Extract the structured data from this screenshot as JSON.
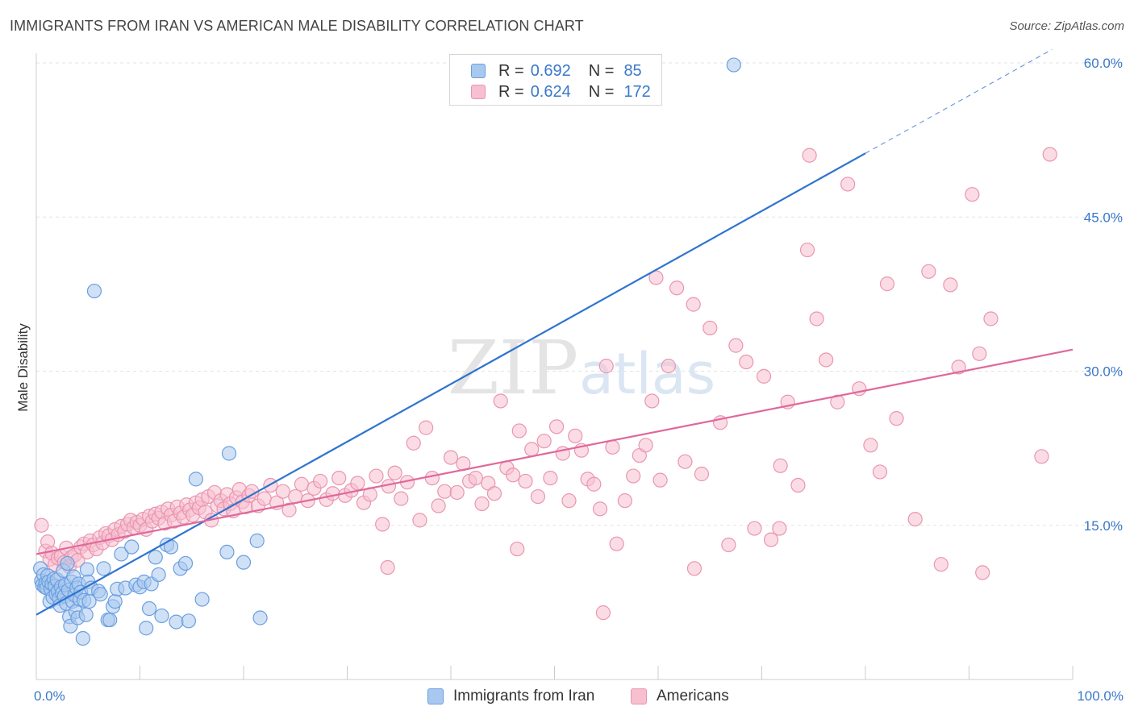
{
  "header": {
    "title": "IMMIGRANTS FROM IRAN VS AMERICAN MALE DISABILITY CORRELATION CHART",
    "source": "Source: ZipAtlas.com"
  },
  "legend": {
    "rows": [
      {
        "r_label": "R =",
        "r_value": "0.692",
        "n_label": "N =",
        "n_value": "85"
      },
      {
        "r_label": "R =",
        "r_value": "0.624",
        "n_label": "N =",
        "n_value": "172"
      }
    ]
  },
  "colors": {
    "blue_fill": "#a9c8ef",
    "blue_stroke": "#6a9fe0",
    "blue_line": "#2f74d0",
    "pink_fill": "#f7bfd0",
    "pink_stroke": "#e896b1",
    "pink_line": "#e0689a",
    "axis_label": "#3a78c9",
    "grid": "#e3e3e3"
  },
  "watermark": {
    "zip": "ZIP",
    "atlas": "atlas"
  },
  "chart_data": {
    "type": "scatter",
    "title": "IMMIGRANTS FROM IRAN VS AMERICAN MALE DISABILITY CORRELATION CHART",
    "xlabel": "",
    "ylabel": "Male Disability",
    "xlim": [
      0,
      100
    ],
    "ylim": [
      0,
      60
    ],
    "x_tick_labels": [
      "0.0%",
      "100.0%"
    ],
    "y_ticks": [
      15,
      30,
      45,
      60
    ],
    "y_tick_labels": [
      "15.0%",
      "30.0%",
      "45.0%",
      "60.0%"
    ],
    "grid": true,
    "legend_position": "top-center",
    "series": [
      {
        "name": "Immigrants from Iran",
        "color": "blue",
        "R": 0.692,
        "N": 85,
        "trend": {
          "x0": 0,
          "y0": 6.3,
          "x1": 80,
          "y1": 51.2,
          "dashed_to_x": 98
        },
        "points": [
          [
            0.4,
            10.8
          ],
          [
            0.5,
            9.6
          ],
          [
            0.6,
            9.2
          ],
          [
            0.7,
            10.2
          ],
          [
            0.8,
            9.0
          ],
          [
            0.9,
            9.4
          ],
          [
            1.0,
            8.9
          ],
          [
            1.1,
            10.1
          ],
          [
            1.2,
            9.5
          ],
          [
            1.3,
            7.6
          ],
          [
            1.4,
            8.8
          ],
          [
            1.5,
            9.3
          ],
          [
            1.6,
            8.0
          ],
          [
            1.7,
            9.8
          ],
          [
            1.8,
            9.1
          ],
          [
            1.9,
            8.3
          ],
          [
            2.0,
            9.7
          ],
          [
            2.1,
            8.6
          ],
          [
            2.2,
            7.9
          ],
          [
            2.3,
            7.2
          ],
          [
            2.4,
            9.0
          ],
          [
            2.5,
            8.4
          ],
          [
            2.6,
            10.6
          ],
          [
            2.7,
            8.1
          ],
          [
            2.8,
            9.2
          ],
          [
            2.9,
            7.4
          ],
          [
            3.0,
            11.3
          ],
          [
            3.1,
            8.7
          ],
          [
            3.2,
            6.1
          ],
          [
            3.3,
            5.2
          ],
          [
            3.4,
            9.5
          ],
          [
            3.5,
            7.6
          ],
          [
            3.6,
            10.0
          ],
          [
            3.7,
            8.2
          ],
          [
            3.8,
            6.6
          ],
          [
            3.9,
            8.9
          ],
          [
            4.0,
            6.0
          ],
          [
            4.1,
            9.3
          ],
          [
            4.2,
            7.8
          ],
          [
            4.3,
            8.5
          ],
          [
            4.5,
            4.0
          ],
          [
            4.6,
            7.7
          ],
          [
            4.8,
            6.3
          ],
          [
            4.9,
            10.7
          ],
          [
            5.0,
            9.5
          ],
          [
            5.1,
            7.6
          ],
          [
            5.3,
            8.9
          ],
          [
            5.6,
            37.8
          ],
          [
            6.0,
            8.6
          ],
          [
            6.2,
            8.3
          ],
          [
            6.5,
            10.8
          ],
          [
            6.9,
            5.8
          ],
          [
            7.1,
            5.8
          ],
          [
            7.4,
            7.1
          ],
          [
            7.6,
            7.6
          ],
          [
            7.8,
            8.8
          ],
          [
            8.2,
            12.2
          ],
          [
            8.6,
            8.9
          ],
          [
            9.2,
            12.9
          ],
          [
            9.6,
            9.2
          ],
          [
            10.0,
            9.0
          ],
          [
            10.4,
            9.5
          ],
          [
            10.6,
            5.0
          ],
          [
            10.9,
            6.9
          ],
          [
            11.1,
            9.3
          ],
          [
            11.5,
            11.9
          ],
          [
            11.8,
            10.2
          ],
          [
            12.1,
            6.2
          ],
          [
            12.6,
            13.1
          ],
          [
            13.0,
            12.9
          ],
          [
            13.5,
            5.6
          ],
          [
            13.9,
            10.8
          ],
          [
            14.4,
            11.3
          ],
          [
            14.7,
            5.7
          ],
          [
            15.4,
            19.5
          ],
          [
            16.0,
            7.8
          ],
          [
            18.4,
            12.4
          ],
          [
            18.6,
            22.0
          ],
          [
            20.0,
            11.4
          ],
          [
            21.3,
            13.5
          ],
          [
            21.6,
            6.0
          ],
          [
            67.3,
            59.8
          ]
        ]
      },
      {
        "name": "Americans",
        "color": "pink",
        "R": 0.624,
        "N": 172,
        "trend": {
          "x0": 0,
          "y0": 12.2,
          "x1": 100,
          "y1": 32.1
        },
        "points": [
          [
            0.5,
            15.0
          ],
          [
            0.9,
            12.5
          ],
          [
            1.1,
            13.4
          ],
          [
            1.3,
            11.7
          ],
          [
            1.5,
            12.3
          ],
          [
            1.8,
            11.2
          ],
          [
            2.1,
            11.8
          ],
          [
            2.4,
            12.0
          ],
          [
            2.7,
            11.4
          ],
          [
            2.9,
            12.8
          ],
          [
            3.2,
            11.0
          ],
          [
            3.4,
            11.9
          ],
          [
            3.7,
            12.1
          ],
          [
            4.0,
            11.6
          ],
          [
            4.3,
            12.9
          ],
          [
            4.6,
            13.2
          ],
          [
            4.9,
            12.4
          ],
          [
            5.2,
            13.5
          ],
          [
            5.5,
            13.1
          ],
          [
            5.8,
            12.7
          ],
          [
            6.1,
            13.8
          ],
          [
            6.4,
            13.3
          ],
          [
            6.7,
            14.2
          ],
          [
            7.0,
            14.0
          ],
          [
            7.3,
            13.6
          ],
          [
            7.6,
            14.6
          ],
          [
            7.9,
            14.1
          ],
          [
            8.2,
            14.9
          ],
          [
            8.5,
            14.4
          ],
          [
            8.8,
            15.1
          ],
          [
            9.1,
            15.5
          ],
          [
            9.4,
            14.8
          ],
          [
            9.7,
            15.3
          ],
          [
            10.0,
            15.0
          ],
          [
            10.3,
            15.6
          ],
          [
            10.6,
            14.6
          ],
          [
            10.9,
            15.9
          ],
          [
            11.2,
            15.4
          ],
          [
            11.5,
            16.1
          ],
          [
            11.8,
            15.7
          ],
          [
            12.1,
            16.3
          ],
          [
            12.4,
            15.2
          ],
          [
            12.7,
            16.6
          ],
          [
            13.0,
            16.0
          ],
          [
            13.3,
            15.4
          ],
          [
            13.6,
            16.8
          ],
          [
            13.9,
            16.2
          ],
          [
            14.2,
            15.8
          ],
          [
            14.5,
            17.0
          ],
          [
            14.8,
            16.5
          ],
          [
            15.1,
            16.0
          ],
          [
            15.4,
            17.2
          ],
          [
            15.7,
            16.7
          ],
          [
            16.0,
            17.5
          ],
          [
            16.3,
            16.3
          ],
          [
            16.6,
            17.8
          ],
          [
            16.9,
            15.5
          ],
          [
            17.2,
            18.2
          ],
          [
            17.5,
            16.9
          ],
          [
            17.8,
            17.4
          ],
          [
            18.1,
            16.6
          ],
          [
            18.4,
            18.0
          ],
          [
            18.7,
            17.1
          ],
          [
            19.0,
            16.4
          ],
          [
            19.3,
            17.7
          ],
          [
            19.6,
            18.5
          ],
          [
            19.9,
            17.3
          ],
          [
            20.2,
            16.8
          ],
          [
            20.5,
            17.9
          ],
          [
            20.8,
            18.3
          ],
          [
            21.4,
            16.9
          ],
          [
            22.0,
            17.6
          ],
          [
            22.6,
            18.9
          ],
          [
            23.2,
            17.2
          ],
          [
            23.8,
            18.3
          ],
          [
            24.4,
            16.5
          ],
          [
            25.0,
            17.8
          ],
          [
            25.6,
            19.0
          ],
          [
            26.2,
            17.4
          ],
          [
            26.8,
            18.6
          ],
          [
            27.4,
            19.3
          ],
          [
            28.0,
            17.5
          ],
          [
            28.6,
            18.1
          ],
          [
            29.2,
            19.6
          ],
          [
            29.8,
            17.9
          ],
          [
            30.4,
            18.4
          ],
          [
            31.0,
            19.1
          ],
          [
            31.6,
            17.2
          ],
          [
            32.2,
            18.0
          ],
          [
            32.8,
            19.8
          ],
          [
            33.4,
            15.1
          ],
          [
            34.0,
            18.8
          ],
          [
            34.6,
            20.1
          ],
          [
            35.2,
            17.6
          ],
          [
            35.8,
            19.2
          ],
          [
            36.4,
            23.0
          ],
          [
            37.0,
            15.5
          ],
          [
            37.6,
            24.5
          ],
          [
            38.2,
            19.6
          ],
          [
            38.8,
            16.9
          ],
          [
            39.4,
            18.3
          ],
          [
            40.0,
            21.6
          ],
          [
            40.6,
            18.2
          ],
          [
            41.2,
            21.0
          ],
          [
            41.8,
            19.3
          ],
          [
            42.4,
            19.6
          ],
          [
            43.0,
            17.1
          ],
          [
            43.6,
            19.1
          ],
          [
            44.2,
            18.1
          ],
          [
            44.8,
            27.1
          ],
          [
            45.4,
            20.6
          ],
          [
            46.0,
            19.9
          ],
          [
            46.6,
            24.2
          ],
          [
            47.2,
            19.3
          ],
          [
            47.8,
            22.4
          ],
          [
            48.4,
            17.8
          ],
          [
            49.0,
            23.2
          ],
          [
            49.6,
            19.6
          ],
          [
            50.2,
            24.6
          ],
          [
            50.8,
            22.0
          ],
          [
            51.4,
            17.4
          ],
          [
            52.0,
            23.7
          ],
          [
            52.6,
            22.3
          ],
          [
            53.2,
            19.5
          ],
          [
            53.8,
            19.0
          ],
          [
            54.4,
            16.6
          ],
          [
            54.7,
            6.5
          ],
          [
            55.0,
            30.5
          ],
          [
            55.6,
            22.6
          ],
          [
            56.0,
            13.2
          ],
          [
            56.8,
            17.4
          ],
          [
            57.6,
            19.8
          ],
          [
            58.2,
            21.8
          ],
          [
            58.8,
            22.8
          ],
          [
            59.4,
            27.1
          ],
          [
            60.2,
            19.4
          ],
          [
            61.0,
            30.5
          ],
          [
            61.8,
            38.1
          ],
          [
            62.6,
            21.2
          ],
          [
            63.4,
            36.5
          ],
          [
            64.2,
            20.0
          ],
          [
            65.0,
            34.2
          ],
          [
            66.0,
            25.0
          ],
          [
            66.8,
            13.1
          ],
          [
            67.5,
            32.5
          ],
          [
            68.5,
            30.9
          ],
          [
            69.3,
            14.7
          ],
          [
            70.2,
            29.5
          ],
          [
            70.9,
            13.6
          ],
          [
            71.8,
            20.8
          ],
          [
            72.5,
            27.0
          ],
          [
            73.5,
            18.9
          ],
          [
            74.4,
            41.8
          ],
          [
            75.3,
            35.1
          ],
          [
            76.2,
            31.1
          ],
          [
            77.3,
            27.0
          ],
          [
            78.3,
            48.2
          ],
          [
            79.4,
            28.3
          ],
          [
            80.5,
            22.8
          ],
          [
            81.4,
            20.2
          ],
          [
            82.1,
            38.5
          ],
          [
            83.0,
            25.4
          ],
          [
            84.8,
            15.6
          ],
          [
            86.1,
            39.7
          ],
          [
            87.3,
            11.2
          ],
          [
            88.2,
            38.4
          ],
          [
            89.0,
            30.4
          ],
          [
            90.3,
            47.2
          ],
          [
            91.3,
            10.4
          ],
          [
            91.0,
            31.7
          ],
          [
            92.1,
            35.1
          ],
          [
            97.0,
            21.7
          ],
          [
            97.8,
            51.1
          ],
          [
            74.6,
            51.0
          ],
          [
            59.8,
            39.1
          ],
          [
            33.9,
            10.9
          ],
          [
            63.5,
            10.8
          ],
          [
            71.7,
            14.7
          ],
          [
            46.4,
            12.7
          ]
        ]
      }
    ]
  },
  "bottom_legend": {
    "items": [
      "Immigrants from Iran",
      "Americans"
    ]
  }
}
